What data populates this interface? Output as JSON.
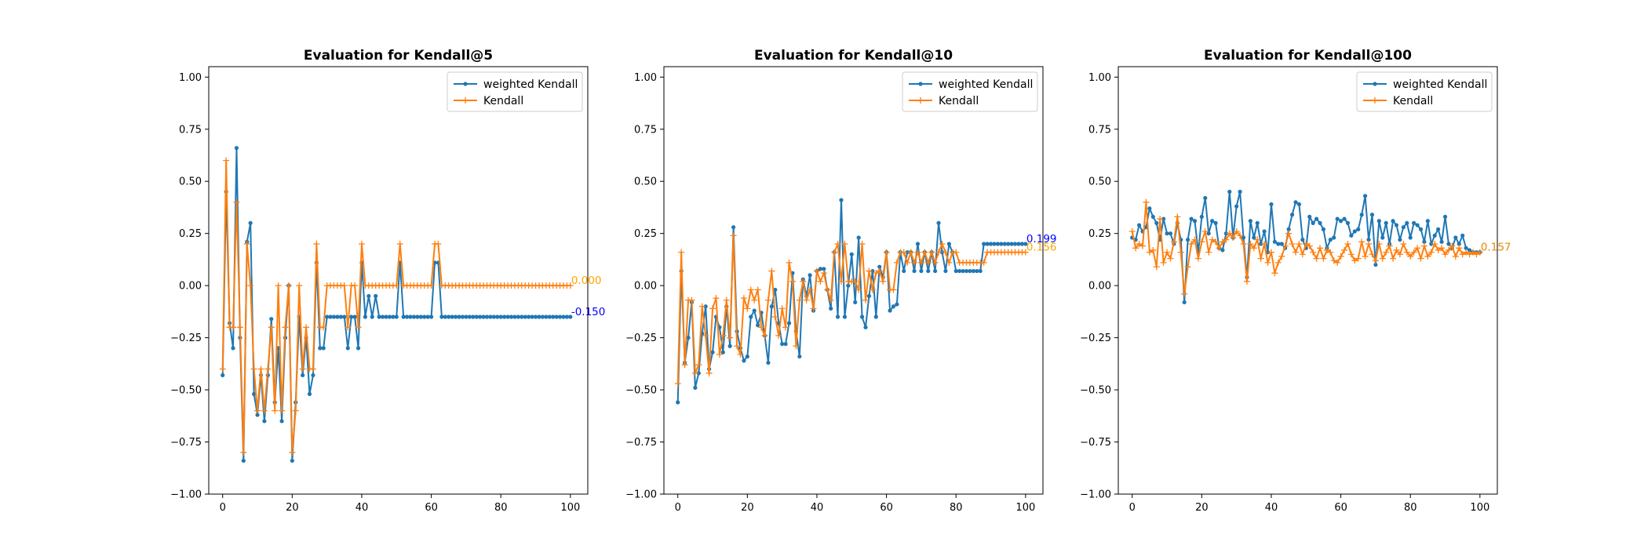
{
  "colors": {
    "series0": "#1f77b4",
    "series1": "#ff7f0e",
    "end_label_0": "#0000ff",
    "end_label_1": "#ffa500"
  },
  "chart_data": [
    {
      "type": "line",
      "title": "Evaluation for Kendall@5",
      "xlabel": "",
      "ylabel": "",
      "xlim": [
        -4,
        105
      ],
      "ylim": [
        -1.0,
        1.05
      ],
      "xticks": [
        0,
        20,
        40,
        60,
        80,
        100
      ],
      "xtick_labels": [
        "0",
        "20",
        "40",
        "60",
        "80",
        "100"
      ],
      "yticks": [
        -1.0,
        -0.75,
        -0.5,
        -0.25,
        0.0,
        0.25,
        0.5,
        0.75,
        1.0
      ],
      "ytick_labels": [
        "−1.00",
        "−0.75",
        "−0.50",
        "−0.25",
        "0.00",
        "0.25",
        "0.50",
        "0.75",
        "1.00"
      ],
      "legend_position": "top-right",
      "end_labels": [
        "-0.150",
        "0.000"
      ],
      "series": [
        {
          "name": "weighted Kendall",
          "marker": "dot",
          "values": [
            -0.43,
            0.45,
            -0.18,
            -0.3,
            0.66,
            -0.25,
            -0.84,
            0.21,
            0.3,
            -0.52,
            -0.62,
            -0.43,
            -0.65,
            -0.43,
            -0.16,
            -0.56,
            -0.3,
            -0.65,
            -0.25,
            0.0,
            -0.84,
            -0.56,
            -0.15,
            -0.43,
            -0.25,
            -0.52,
            -0.43,
            0.11,
            -0.3,
            -0.3,
            -0.15,
            -0.15,
            -0.15,
            -0.15,
            -0.15,
            -0.15,
            -0.3,
            -0.15,
            -0.15,
            -0.3,
            0.11,
            -0.15,
            -0.05,
            -0.15,
            -0.05,
            -0.15,
            -0.15,
            -0.15,
            -0.15,
            -0.15,
            -0.15,
            0.11,
            -0.15,
            -0.15,
            -0.15,
            -0.15,
            -0.15,
            -0.15,
            -0.15,
            -0.15,
            -0.15,
            0.11,
            0.11,
            -0.15,
            -0.15,
            -0.15,
            -0.15,
            -0.15,
            -0.15,
            -0.15,
            -0.15,
            -0.15,
            -0.15,
            -0.15,
            -0.15,
            -0.15,
            -0.15,
            -0.15,
            -0.15,
            -0.15,
            -0.15,
            -0.15,
            -0.15,
            -0.15,
            -0.15,
            -0.15,
            -0.15,
            -0.15,
            -0.15,
            -0.15,
            -0.15,
            -0.15,
            -0.15,
            -0.15,
            -0.15,
            -0.15,
            -0.15,
            -0.15,
            -0.15,
            -0.15,
            -0.15
          ]
        },
        {
          "name": "Kendall",
          "marker": "plus",
          "values": [
            -0.4,
            0.6,
            -0.2,
            -0.2,
            0.4,
            -0.2,
            -0.8,
            0.2,
            0.0,
            -0.4,
            -0.6,
            -0.4,
            -0.6,
            -0.4,
            -0.2,
            -0.6,
            0.0,
            -0.6,
            -0.2,
            0.0,
            -0.8,
            -0.6,
            0.0,
            -0.4,
            -0.2,
            -0.4,
            -0.4,
            0.2,
            -0.2,
            -0.2,
            0.0,
            0.0,
            0.0,
            0.0,
            0.0,
            0.0,
            -0.2,
            0.0,
            0.0,
            -0.2,
            0.2,
            0.0,
            0.0,
            0.0,
            0.0,
            0.0,
            0.0,
            0.0,
            0.0,
            0.0,
            0.0,
            0.2,
            0.0,
            0.0,
            0.0,
            0.0,
            0.0,
            0.0,
            0.0,
            0.0,
            0.0,
            0.2,
            0.2,
            0.0,
            0.0,
            0.0,
            0.0,
            0.0,
            0.0,
            0.0,
            0.0,
            0.0,
            0.0,
            0.0,
            0.0,
            0.0,
            0.0,
            0.0,
            0.0,
            0.0,
            0.0,
            0.0,
            0.0,
            0.0,
            0.0,
            0.0,
            0.0,
            0.0,
            0.0,
            0.0,
            0.0,
            0.0,
            0.0,
            0.0,
            0.0,
            0.0,
            0.0,
            0.0,
            0.0,
            0.0,
            0.0
          ]
        }
      ]
    },
    {
      "type": "line",
      "title": "Evaluation for Kendall@10",
      "xlabel": "",
      "ylabel": "",
      "xlim": [
        -4,
        105
      ],
      "ylim": [
        -1.0,
        1.05
      ],
      "xticks": [
        0,
        20,
        40,
        60,
        80,
        100
      ],
      "xtick_labels": [
        "0",
        "20",
        "40",
        "60",
        "80",
        "100"
      ],
      "yticks": [
        -1.0,
        -0.75,
        -0.5,
        -0.25,
        0.0,
        0.25,
        0.5,
        0.75,
        1.0
      ],
      "ytick_labels": [
        "−1.00",
        "−0.75",
        "−0.50",
        "−0.25",
        "0.00",
        "0.25",
        "0.50",
        "0.75",
        "1.00"
      ],
      "legend_position": "top-right",
      "end_labels": [
        "0.199",
        "0.156"
      ],
      "series": [
        {
          "name": "weighted Kendall",
          "marker": "dot",
          "values": [
            -0.56,
            0.07,
            -0.37,
            -0.25,
            -0.08,
            -0.49,
            -0.42,
            -0.23,
            -0.1,
            -0.4,
            -0.32,
            -0.15,
            -0.2,
            -0.32,
            -0.1,
            -0.29,
            0.28,
            -0.22,
            -0.3,
            -0.36,
            -0.34,
            -0.15,
            -0.12,
            -0.19,
            -0.13,
            -0.24,
            -0.37,
            -0.1,
            -0.02,
            -0.18,
            -0.28,
            -0.28,
            -0.18,
            0.06,
            -0.22,
            -0.34,
            0.03,
            -0.05,
            0.05,
            -0.12,
            0.07,
            0.08,
            0.08,
            -0.02,
            -0.11,
            0.16,
            -0.15,
            0.41,
            -0.15,
            0.0,
            0.15,
            -0.08,
            0.23,
            -0.15,
            -0.2,
            -0.05,
            0.07,
            -0.15,
            0.09,
            0.04,
            0.16,
            -0.12,
            -0.1,
            -0.09,
            0.16,
            0.07,
            0.16,
            0.16,
            0.07,
            0.2,
            0.07,
            0.16,
            0.07,
            0.16,
            0.07,
            0.3,
            0.16,
            0.07,
            0.2,
            0.16,
            0.07,
            0.07,
            0.07,
            0.07,
            0.07,
            0.07,
            0.07,
            0.07,
            0.2,
            0.2,
            0.2,
            0.2,
            0.2,
            0.2,
            0.2,
            0.2,
            0.2,
            0.2,
            0.2,
            0.2,
            0.2
          ]
        },
        {
          "name": "Kendall",
          "marker": "plus",
          "values": [
            -0.47,
            0.16,
            -0.38,
            -0.07,
            -0.07,
            -0.42,
            -0.38,
            -0.1,
            -0.24,
            -0.42,
            -0.11,
            -0.06,
            -0.33,
            -0.24,
            -0.07,
            -0.25,
            0.24,
            -0.29,
            -0.33,
            -0.06,
            -0.11,
            -0.02,
            -0.07,
            -0.02,
            -0.2,
            -0.24,
            -0.07,
            0.07,
            -0.15,
            -0.24,
            -0.11,
            -0.2,
            0.11,
            0.02,
            -0.29,
            -0.07,
            0.02,
            -0.07,
            -0.02,
            -0.11,
            0.07,
            0.02,
            0.06,
            -0.02,
            -0.07,
            0.16,
            0.2,
            0.02,
            0.2,
            0.02,
            0.02,
            0.02,
            -0.02,
            0.2,
            -0.07,
            0.07,
            -0.02,
            0.06,
            0.07,
            0.02,
            0.16,
            -0.02,
            -0.02,
            0.11,
            0.16,
            0.16,
            0.11,
            0.16,
            0.11,
            0.16,
            0.11,
            0.16,
            0.11,
            0.16,
            0.11,
            0.16,
            0.2,
            0.16,
            0.11,
            0.16,
            0.16,
            0.11,
            0.11,
            0.11,
            0.11,
            0.11,
            0.11,
            0.11,
            0.11,
            0.16,
            0.16,
            0.16,
            0.16,
            0.16,
            0.16,
            0.16,
            0.16,
            0.16,
            0.16,
            0.16,
            0.16
          ]
        }
      ]
    },
    {
      "type": "line",
      "title": "Evaluation for Kendall@100",
      "xlabel": "",
      "ylabel": "",
      "xlim": [
        -4,
        105
      ],
      "ylim": [
        -1.0,
        1.05
      ],
      "xticks": [
        0,
        20,
        40,
        60,
        80,
        100
      ],
      "xtick_labels": [
        "0",
        "20",
        "40",
        "60",
        "80",
        "100"
      ],
      "yticks": [
        -1.0,
        -0.75,
        -0.5,
        -0.25,
        0.0,
        0.25,
        0.5,
        0.75,
        1.0
      ],
      "ytick_labels": [
        "−1.00",
        "−0.75",
        "−0.50",
        "−0.25",
        "0.00",
        "0.25",
        "0.50",
        "0.75",
        "1.00"
      ],
      "legend_position": "top-right",
      "end_labels": [
        "0.157",
        "0.157"
      ],
      "series": [
        {
          "name": "weighted Kendall",
          "marker": "dot",
          "values": [
            0.23,
            0.22,
            0.29,
            0.26,
            0.28,
            0.37,
            0.33,
            0.3,
            0.22,
            0.32,
            0.25,
            0.25,
            0.2,
            0.3,
            0.22,
            -0.08,
            0.22,
            0.32,
            0.31,
            0.16,
            0.33,
            0.42,
            0.25,
            0.31,
            0.3,
            0.18,
            0.17,
            0.25,
            0.45,
            0.23,
            0.38,
            0.45,
            0.23,
            0.04,
            0.31,
            0.23,
            0.3,
            0.2,
            0.26,
            0.16,
            0.39,
            0.21,
            0.2,
            0.2,
            0.18,
            0.27,
            0.34,
            0.4,
            0.39,
            0.22,
            0.18,
            0.33,
            0.3,
            0.32,
            0.3,
            0.27,
            0.18,
            0.22,
            0.23,
            0.32,
            0.31,
            0.32,
            0.3,
            0.24,
            0.26,
            0.27,
            0.34,
            0.43,
            0.22,
            0.34,
            0.1,
            0.31,
            0.23,
            0.3,
            0.2,
            0.31,
            0.29,
            0.22,
            0.28,
            0.3,
            0.23,
            0.3,
            0.29,
            0.27,
            0.21,
            0.31,
            0.2,
            0.24,
            0.27,
            0.21,
            0.33,
            0.2,
            0.18,
            0.23,
            0.2,
            0.24,
            0.18,
            0.17,
            0.16,
            0.16,
            0.16
          ]
        },
        {
          "name": "Kendall",
          "marker": "plus",
          "values": [
            0.26,
            0.18,
            0.2,
            0.19,
            0.4,
            0.16,
            0.17,
            0.09,
            0.32,
            0.11,
            0.16,
            0.13,
            0.21,
            0.33,
            0.16,
            -0.04,
            0.09,
            0.2,
            0.22,
            0.13,
            0.21,
            0.26,
            0.16,
            0.22,
            0.21,
            0.18,
            0.21,
            0.22,
            0.25,
            0.23,
            0.26,
            0.24,
            0.2,
            0.02,
            0.2,
            0.18,
            0.22,
            0.13,
            0.2,
            0.11,
            0.16,
            0.06,
            0.11,
            0.14,
            0.19,
            0.25,
            0.2,
            0.16,
            0.2,
            0.15,
            0.2,
            0.19,
            0.16,
            0.13,
            0.18,
            0.13,
            0.17,
            0.16,
            0.12,
            0.11,
            0.14,
            0.17,
            0.2,
            0.15,
            0.12,
            0.13,
            0.21,
            0.14,
            0.2,
            0.15,
            0.12,
            0.2,
            0.13,
            0.16,
            0.19,
            0.13,
            0.17,
            0.15,
            0.2,
            0.16,
            0.14,
            0.16,
            0.18,
            0.13,
            0.19,
            0.14,
            0.16,
            0.2,
            0.17,
            0.18,
            0.15,
            0.17,
            0.19,
            0.14,
            0.18,
            0.15,
            0.16,
            0.15,
            0.16,
            0.15,
            0.16
          ]
        }
      ]
    }
  ]
}
